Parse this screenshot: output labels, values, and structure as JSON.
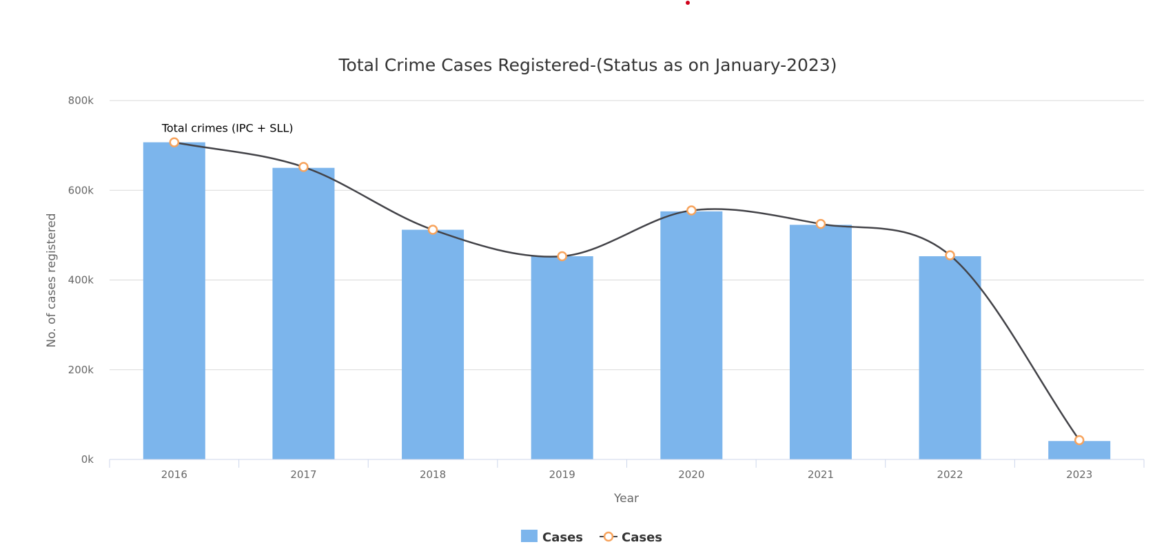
{
  "chart_data": {
    "type": "bar",
    "title": "Total Crime Cases Registered-(Status as on January-2023)",
    "xlabel": "Year",
    "ylabel": "No. of cases registered",
    "categories": [
      "2016",
      "2017",
      "2018",
      "2019",
      "2020",
      "2021",
      "2022",
      "2023"
    ],
    "ylim": [
      0,
      800000
    ],
    "yticks": [
      0,
      200000,
      400000,
      600000,
      800000
    ],
    "ytick_labels": [
      "0k",
      "200k",
      "400k",
      "600k",
      "800k"
    ],
    "grid": true,
    "legend_position": "bottom-center",
    "series": [
      {
        "name": "Cases",
        "type": "bar",
        "color": "#7cb5ec",
        "values": [
          707000,
          650000,
          512000,
          453000,
          553000,
          523000,
          453000,
          41000
        ]
      },
      {
        "name": "Cases",
        "type": "line",
        "line_color": "#434348",
        "marker_color": "#f7a35c",
        "values": [
          707000,
          652000,
          512000,
          453000,
          555000,
          525000,
          455000,
          43000
        ]
      }
    ],
    "annotations": [
      {
        "text": "Total crimes (IPC + SLL)",
        "category": "2016"
      }
    ]
  }
}
